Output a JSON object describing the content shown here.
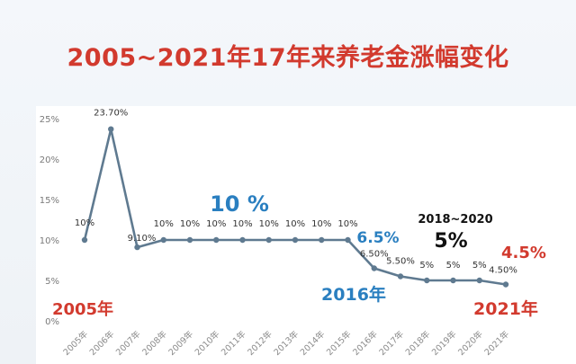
{
  "title": "2005~2021年17年来养老金涨幅变化",
  "chart_data": {
    "type": "line",
    "x": [
      "2005年",
      "2006年",
      "2007年",
      "2008年",
      "2009年",
      "2010年",
      "2011年",
      "2012年",
      "2013年",
      "2014年",
      "2015年",
      "2016年",
      "2017年",
      "2018年",
      "2019年",
      "2020年",
      "2021年"
    ],
    "values": [
      10,
      23.7,
      9.1,
      10,
      10,
      10,
      10,
      10,
      10,
      10,
      10,
      6.5,
      5.5,
      5,
      5,
      5,
      4.5
    ],
    "data_labels": [
      "10%",
      "23.70%",
      "9.10%",
      "10%",
      "10%",
      "10%",
      "10%",
      "10%",
      "10%",
      "10%",
      "10%",
      "6.50%",
      "5.50%",
      "5%",
      "5%",
      "5%",
      "4.50%"
    ],
    "yticks": [
      "0%",
      "5%",
      "10%",
      "15%",
      "20%",
      "25%"
    ],
    "ylim": [
      0,
      25
    ],
    "grid": false,
    "line_color": "#5f7a90",
    "annotations": [
      {
        "text": "2005年",
        "color": "#d23a2e"
      },
      {
        "text": "10 %",
        "color": "#2a7fc0"
      },
      {
        "text": "6.5%",
        "color": "#2a7fc0"
      },
      {
        "text": "2016年",
        "color": "#2a7fc0"
      },
      {
        "text": "2018~2020",
        "color": "#111111"
      },
      {
        "text": "5%",
        "color": "#111111"
      },
      {
        "text": "4.5%",
        "color": "#d23a2e"
      },
      {
        "text": "2021年",
        "color": "#d23a2e"
      }
    ]
  }
}
